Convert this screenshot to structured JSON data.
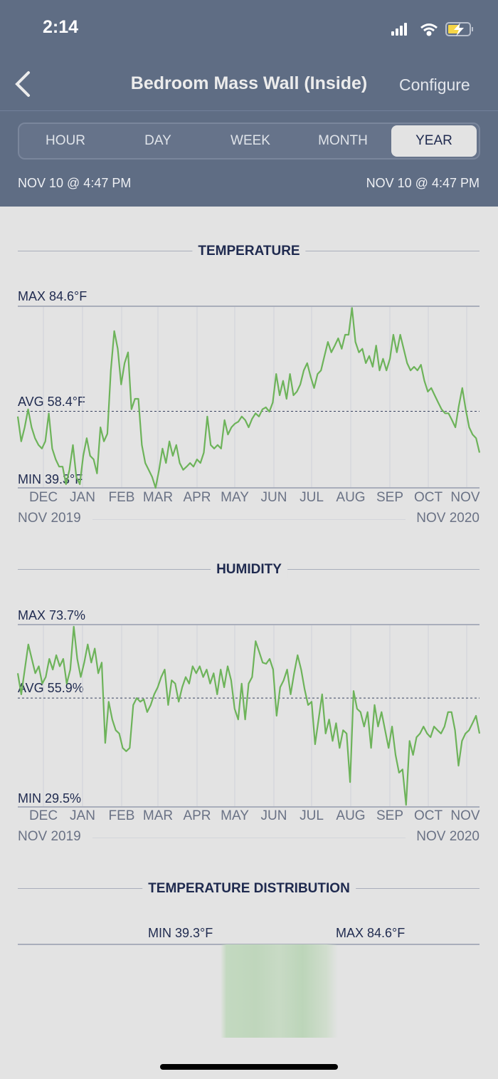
{
  "status_bar": {
    "time": "2:14",
    "battery_color": "#f5d547"
  },
  "header": {
    "title": "Bedroom Mass Wall (Inside)",
    "configure": "Configure",
    "back_icon": "chevron-left"
  },
  "tabs": [
    {
      "label": "HOUR"
    },
    {
      "label": "DAY"
    },
    {
      "label": "WEEK"
    },
    {
      "label": "MONTH"
    },
    {
      "label": "YEAR",
      "selected": true
    }
  ],
  "date_range": {
    "start": "NOV 10 @ 4:47 PM",
    "end": "NOV 10 @ 4:47 PM"
  },
  "colors": {
    "header": "#5f6d84",
    "line": "#6db35a",
    "text": "#1f2a4f"
  },
  "chart_data": [
    {
      "type": "line",
      "title": "TEMPERATURE",
      "max_label": "MAX 84.6°F",
      "avg_label": "AVG 58.4°F",
      "min_label": "MIN 39.3°F",
      "ylim": [
        39.3,
        84.6
      ],
      "avg": 58.4,
      "months": [
        "DEC",
        "JAN",
        "FEB",
        "MAR",
        "APR",
        "MAY",
        "JUN",
        "JUL",
        "AUG",
        "SEP",
        "OCT",
        "NOV"
      ],
      "start_label": "NOV 2019",
      "end_label": "NOV 2020",
      "values": [
        57.1,
        50.9,
        54.4,
        58.9,
        54.4,
        51.7,
        50.0,
        49.1,
        50.9,
        57.9,
        49.1,
        46.4,
        44.6,
        44.6,
        40.2,
        43.8,
        50.0,
        42.0,
        40.2,
        47.3,
        51.7,
        47.3,
        46.4,
        42.9,
        54.4,
        50.9,
        52.8,
        68.6,
        78.4,
        74.0,
        65.1,
        70.4,
        73.1,
        58.9,
        61.5,
        61.5,
        50.0,
        45.5,
        43.8,
        42.0,
        39.3,
        43.8,
        49.1,
        45.5,
        50.9,
        47.3,
        50.0,
        45.5,
        43.8,
        44.6,
        45.5,
        44.6,
        46.4,
        45.5,
        48.1,
        57.1,
        50.0,
        49.1,
        50.0,
        49.1,
        56.2,
        52.6,
        54.4,
        55.3,
        55.8,
        57.1,
        56.2,
        54.4,
        56.5,
        57.9,
        57.1,
        58.9,
        59.4,
        58.3,
        60.6,
        67.7,
        62.4,
        66.0,
        61.5,
        67.7,
        62.4,
        63.3,
        65.1,
        68.6,
        70.4,
        67.0,
        64.2,
        67.7,
        68.6,
        72.2,
        75.7,
        73.1,
        74.8,
        76.6,
        74.0,
        77.5,
        77.5,
        84.2,
        75.7,
        73.1,
        74.0,
        70.4,
        72.2,
        69.5,
        74.8,
        68.6,
        71.5,
        68.6,
        71.5,
        77.5,
        73.1,
        77.5,
        74.0,
        70.4,
        68.6,
        69.5,
        68.6,
        70.0,
        66.0,
        63.3,
        64.2,
        62.4,
        60.6,
        58.9,
        57.9,
        57.9,
        56.2,
        54.4,
        59.7,
        64.2,
        58.9,
        54.4,
        52.6,
        51.7,
        48.1
      ]
    },
    {
      "type": "line",
      "title": "HUMIDITY",
      "max_label": "MAX 73.7%",
      "avg_label": "AVG 55.9%",
      "min_label": "MIN 29.5%",
      "ylim": [
        29.5,
        73.7
      ],
      "avg": 55.9,
      "months": [
        "DEC",
        "JAN",
        "FEB",
        "MAR",
        "APR",
        "MAY",
        "JUN",
        "JUL",
        "AUG",
        "SEP",
        "OCT",
        "NOV"
      ],
      "start_label": "NOV 2019",
      "end_label": "NOV 2020",
      "values": [
        61.9,
        56.8,
        62.8,
        68.9,
        65.4,
        61.9,
        63.6,
        59.4,
        61.0,
        65.4,
        62.8,
        66.3,
        63.6,
        65.4,
        59.4,
        62.8,
        73.2,
        65.4,
        61.0,
        64.5,
        68.9,
        64.5,
        67.9,
        61.9,
        64.5,
        45.0,
        55.0,
        50.7,
        48.1,
        47.3,
        43.8,
        43.0,
        43.8,
        54.2,
        55.9,
        55.0,
        55.6,
        52.5,
        54.2,
        56.8,
        58.5,
        61.0,
        62.8,
        54.2,
        60.2,
        59.4,
        55.0,
        58.5,
        61.0,
        59.4,
        63.6,
        61.9,
        63.6,
        61.0,
        62.8,
        59.4,
        61.9,
        56.8,
        62.8,
        58.5,
        63.6,
        60.2,
        53.3,
        50.7,
        59.4,
        50.7,
        59.4,
        61.0,
        69.7,
        67.1,
        64.5,
        64.2,
        65.4,
        62.8,
        51.6,
        58.5,
        60.2,
        62.8,
        56.8,
        61.9,
        66.3,
        62.8,
        58.0,
        54.2,
        55.0,
        44.7,
        50.7,
        56.8,
        47.3,
        50.7,
        45.5,
        49.8,
        43.8,
        48.1,
        47.3,
        35.5,
        57.6,
        53.3,
        52.5,
        49.0,
        52.5,
        43.8,
        54.2,
        49.0,
        52.5,
        48.1,
        43.8,
        49.0,
        42.1,
        37.8,
        38.6,
        30.0,
        45.5,
        42.1,
        46.4,
        47.3,
        49.0,
        47.3,
        46.4,
        49.0,
        48.1,
        47.3,
        49.0,
        52.5,
        52.5,
        48.1,
        39.5,
        45.5,
        47.3,
        48.1,
        49.8,
        51.6,
        47.3
      ]
    }
  ],
  "distribution": {
    "title": "TEMPERATURE DISTRIBUTION",
    "min_label": "MIN 39.3°F",
    "max_label": "MAX 84.6°F"
  }
}
